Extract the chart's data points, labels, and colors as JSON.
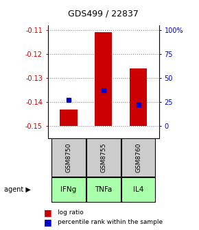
{
  "title": "GDS499 / 22837",
  "samples": [
    "GSM8750",
    "GSM8755",
    "GSM8760"
  ],
  "agents": [
    "IFNg",
    "TNFa",
    "IL4"
  ],
  "log_ratio_values": [
    -0.143,
    -0.111,
    -0.126
  ],
  "log_ratio_base": -0.15,
  "percentile_ranks": [
    27,
    37,
    22
  ],
  "ylim": [
    -0.155,
    -0.108
  ],
  "yticks": [
    -0.11,
    -0.12,
    -0.13,
    -0.14,
    -0.15
  ],
  "right_yticks": [
    0,
    25,
    50,
    75,
    100
  ],
  "bar_color": "#cc0000",
  "percentile_color": "#0000cc",
  "sample_bg": "#cccccc",
  "agent_bg": "#aaffaa",
  "grid_color": "#888888",
  "left_axis_color": "#cc0000",
  "right_axis_color": "#0000cc"
}
